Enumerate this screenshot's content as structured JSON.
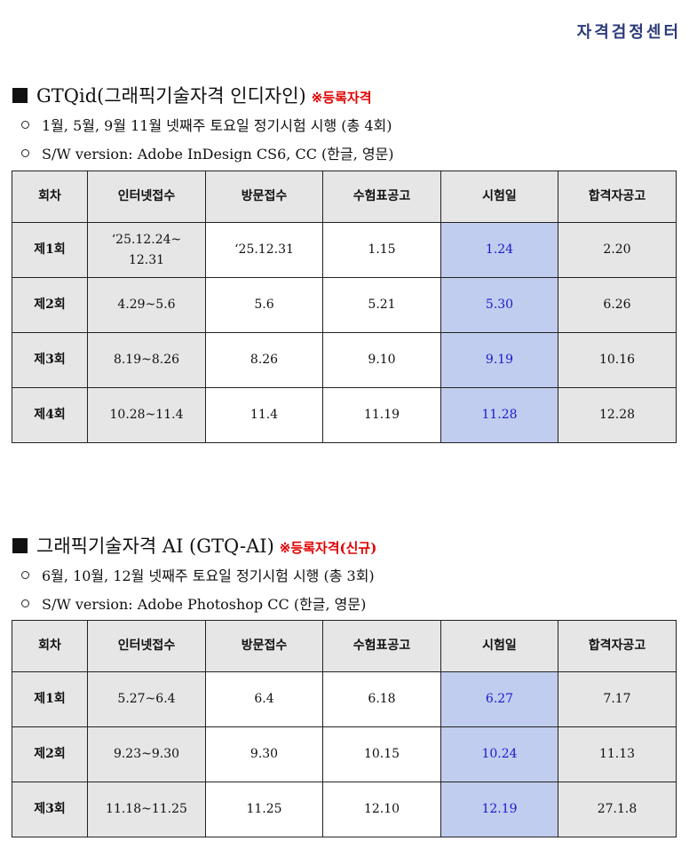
{
  "center_name": "자격검정센터",
  "sections": [
    {
      "title": "GTQid(그래픽기술자격 인디자인)",
      "tag": "※등록자격",
      "bullets": [
        "1월, 5월, 9월 11월 넷째주 토요일 정기시험 시행 (총 4회)",
        "S/W version: Adobe InDesign CS6, CC (한글, 영문)"
      ],
      "headers": [
        "회차",
        "인터넷접수",
        "방문접수",
        "수험표공고",
        "시험일",
        "합격자공고"
      ],
      "rows": [
        [
          "제1회",
          "‘25.12.24~\n12.31",
          "‘25.12.31",
          "1.15",
          "1.24",
          "2.20"
        ],
        [
          "제2회",
          "4.29~5.6",
          "5.6",
          "5.21",
          "5.30",
          "6.26"
        ],
        [
          "제3회",
          "8.19~8.26",
          "8.26",
          "9.10",
          "9.19",
          "10.16"
        ],
        [
          "제4회",
          "10.28~11.4",
          "11.4",
          "11.19",
          "11.28",
          "12.28"
        ]
      ]
    },
    {
      "title": "그래픽기술자격 AI (GTQ-AI)",
      "tag": "※등록자격(신규)",
      "bullets": [
        "6월, 10월, 12월 넷째주 토요일 정기시험 시행 (총 3회)",
        "S/W version: Adobe Photoshop CC (한글, 영문)"
      ],
      "headers": [
        "회차",
        "인터넷접수",
        "방문접수",
        "수험표공고",
        "시험일",
        "합격자공고"
      ],
      "rows": [
        [
          "제1회",
          "5.27~6.4",
          "6.4",
          "6.18",
          "6.27",
          "7.17"
        ],
        [
          "제2회",
          "9.23~9.30",
          "9.30",
          "10.15",
          "10.24",
          "11.13"
        ],
        [
          "제3회",
          "11.18~11.25",
          "11.25",
          "12.10",
          "12.19",
          "27.1.8"
        ]
      ]
    }
  ],
  "colors": {
    "exam_day_bg": "#c1cdee",
    "exam_day_text": "#1a1acc",
    "tag": "#e00000",
    "header_bg": "#e6e6e6"
  }
}
